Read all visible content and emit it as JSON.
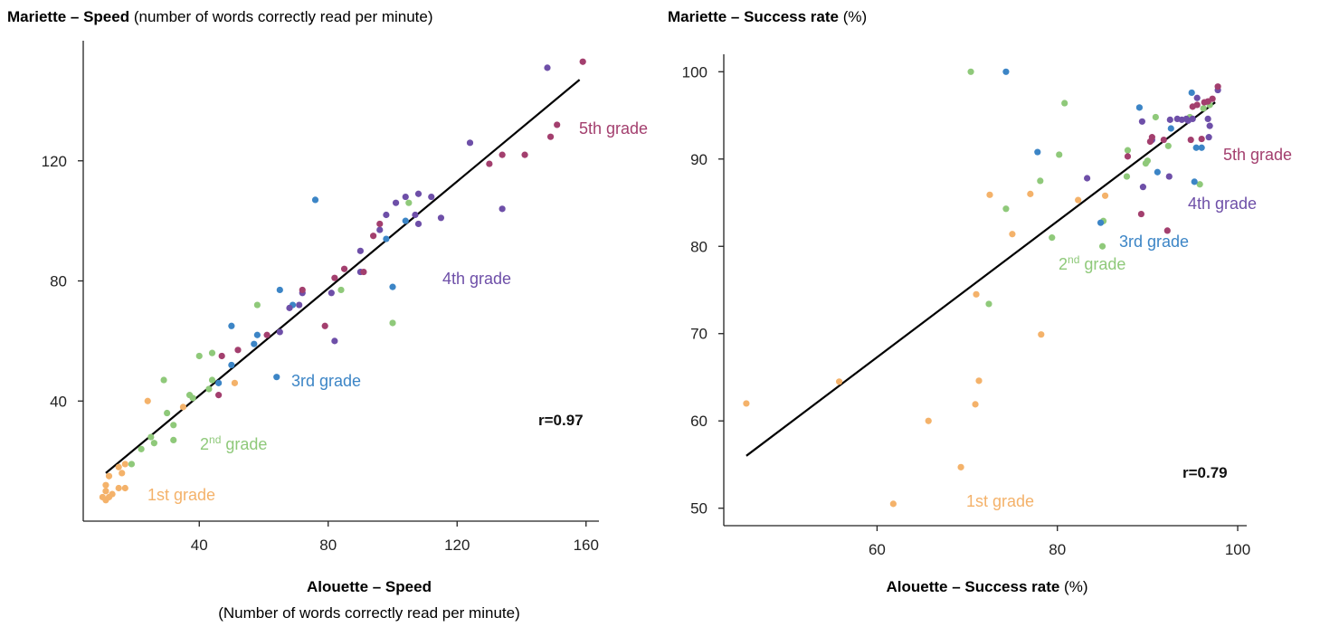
{
  "colors": {
    "1st grade": "#F4B26A",
    "2nd grade": "#8FC97A",
    "3rd grade": "#3C85C6",
    "4th grade": "#6E4FA8",
    "5th grade": "#A33F6E"
  },
  "chart_data": [
    {
      "type": "scatter",
      "title_bold": "Mariette – Speed",
      "title_rest": " (number of words correctly read per minute)",
      "xlabel_bold": "Alouette – Speed",
      "xlabel_line2": "(Number of words correctly read per minute)",
      "x_ticks": [
        "40",
        "80",
        "120",
        "160"
      ],
      "y_ticks": [
        "40",
        "80",
        "120"
      ],
      "xlim": [
        4,
        164
      ],
      "ylim": [
        0,
        160
      ],
      "r_label": "r=0.97",
      "fit_line": [
        [
          11,
          16
        ],
        [
          158,
          147
        ]
      ],
      "grade_labels": [
        "1st grade",
        "2",
        "nd",
        " grade",
        "3rd grade",
        "4th grade",
        "5th grade"
      ],
      "series": [
        {
          "grade": "1st grade",
          "points": [
            [
              11,
              7
            ],
            [
              10,
              8
            ],
            [
              12,
              8
            ],
            [
              13,
              9
            ],
            [
              11,
              10
            ],
            [
              15,
              11
            ],
            [
              11,
              12
            ],
            [
              17,
              11
            ],
            [
              16,
              16
            ],
            [
              12,
              15
            ],
            [
              15,
              18
            ],
            [
              17,
              19
            ],
            [
              24,
              40
            ],
            [
              35,
              38
            ],
            [
              51,
              46
            ]
          ]
        },
        {
          "grade": "2nd grade",
          "points": [
            [
              19,
              19
            ],
            [
              22,
              24
            ],
            [
              26,
              26
            ],
            [
              25,
              28
            ],
            [
              32,
              27
            ],
            [
              32,
              32
            ],
            [
              30,
              36
            ],
            [
              29,
              47
            ],
            [
              37,
              42
            ],
            [
              38,
              41
            ],
            [
              40,
              55
            ],
            [
              44,
              56
            ],
            [
              43,
              44
            ],
            [
              44,
              47
            ],
            [
              58,
              72
            ],
            [
              84,
              77
            ],
            [
              100,
              66
            ],
            [
              105,
              106
            ]
          ]
        },
        {
          "grade": "3rd grade",
          "points": [
            [
              46,
              46
            ],
            [
              50,
              52
            ],
            [
              50,
              65
            ],
            [
              57,
              59
            ],
            [
              58,
              62
            ],
            [
              64,
              48
            ],
            [
              65,
              77
            ],
            [
              69,
              72
            ],
            [
              76,
              107
            ],
            [
              98,
              94
            ],
            [
              100,
              78
            ],
            [
              104,
              100
            ]
          ]
        },
        {
          "grade": "4th grade",
          "points": [
            [
              65,
              63
            ],
            [
              68,
              71
            ],
            [
              71,
              72
            ],
            [
              72,
              76
            ],
            [
              81,
              76
            ],
            [
              82,
              60
            ],
            [
              90,
              83
            ],
            [
              90,
              90
            ],
            [
              96,
              97
            ],
            [
              98,
              102
            ],
            [
              101,
              106
            ],
            [
              104,
              108
            ],
            [
              107,
              102
            ],
            [
              108,
              109
            ],
            [
              112,
              108
            ],
            [
              108,
              99
            ],
            [
              115,
              101
            ],
            [
              124,
              126
            ],
            [
              134,
              104
            ],
            [
              148,
              151
            ]
          ]
        },
        {
          "grade": "5th grade",
          "points": [
            [
              46,
              42
            ],
            [
              47,
              55
            ],
            [
              52,
              57
            ],
            [
              61,
              62
            ],
            [
              72,
              77
            ],
            [
              79,
              65
            ],
            [
              82,
              81
            ],
            [
              85,
              84
            ],
            [
              91,
              83
            ],
            [
              94,
              95
            ],
            [
              96,
              99
            ],
            [
              130,
              119
            ],
            [
              134,
              122
            ],
            [
              141,
              122
            ],
            [
              149,
              128
            ],
            [
              151,
              132
            ],
            [
              159,
              153
            ]
          ]
        }
      ]
    },
    {
      "type": "scatter",
      "title_bold": "Mariette – Success rate",
      "title_rest": " (%)",
      "xlabel_bold": "Alouette – Success rate",
      "xlabel_rest": " (%)",
      "x_ticks": [
        "60",
        "80",
        "100"
      ],
      "y_ticks": [
        "50",
        "60",
        "70",
        "80",
        "90",
        "100"
      ],
      "xlim": [
        43,
        101
      ],
      "ylim": [
        48,
        102
      ],
      "r_label": "r=0.79",
      "fit_line": [
        [
          45.5,
          56
        ],
        [
          97.5,
          96.5
        ]
      ],
      "grade_labels": [
        "1st grade",
        "2",
        "nd",
        " grade",
        "3rd grade",
        "4th grade",
        "5th grade"
      ],
      "series": [
        {
          "grade": "1st grade",
          "points": [
            [
              45.5,
              62
            ],
            [
              55.8,
              64.5
            ],
            [
              61.8,
              50.5
            ],
            [
              65.7,
              60
            ],
            [
              69.3,
              54.7
            ],
            [
              70.9,
              61.9
            ],
            [
              71.3,
              64.6
            ],
            [
              71,
              74.5
            ],
            [
              72.5,
              85.9
            ],
            [
              75,
              81.4
            ],
            [
              77,
              86
            ],
            [
              78.2,
              69.9
            ],
            [
              82.3,
              85.3
            ],
            [
              85.3,
              85.8
            ]
          ]
        },
        {
          "grade": "2nd grade",
          "points": [
            [
              70.4,
              100
            ],
            [
              72.4,
              73.4
            ],
            [
              74.3,
              84.3
            ],
            [
              78.1,
              87.5
            ],
            [
              79.4,
              81
            ],
            [
              80.2,
              90.5
            ],
            [
              80.8,
              96.4
            ],
            [
              85,
              80
            ],
            [
              85.1,
              82.9
            ],
            [
              87.8,
              91
            ],
            [
              87.7,
              88
            ],
            [
              89.8,
              89.5
            ],
            [
              90,
              89.8
            ],
            [
              90.9,
              94.8
            ],
            [
              92.3,
              91.5
            ],
            [
              94.7,
              94.8
            ],
            [
              95.8,
              87.1
            ],
            [
              96.2,
              95.8
            ],
            [
              96.9,
              96.2
            ]
          ]
        },
        {
          "grade": "3rd grade",
          "points": [
            [
              74.3,
              100
            ],
            [
              77.8,
              90.8
            ],
            [
              84.8,
              82.7
            ],
            [
              89.1,
              95.9
            ],
            [
              91.1,
              88.5
            ],
            [
              92.6,
              93.5
            ],
            [
              94.9,
              97.6
            ],
            [
              95.2,
              87.4
            ],
            [
              95.4,
              91.3
            ],
            [
              96,
              91.3
            ]
          ]
        },
        {
          "grade": "4th grade",
          "points": [
            [
              83.3,
              87.8
            ],
            [
              89.4,
              94.3
            ],
            [
              89.5,
              86.8
            ],
            [
              90.5,
              92.2
            ],
            [
              92.4,
              88
            ],
            [
              92.5,
              94.5
            ],
            [
              93.3,
              94.6
            ],
            [
              93.8,
              94.5
            ],
            [
              94.3,
              94.6
            ],
            [
              94.5,
              94.4
            ],
            [
              95,
              94.6
            ],
            [
              95.5,
              97
            ],
            [
              96.7,
              94.6
            ],
            [
              96.8,
              92.5
            ],
            [
              96.9,
              93.8
            ],
            [
              97.8,
              97.9
            ]
          ]
        },
        {
          "grade": "5th grade",
          "points": [
            [
              87.8,
              90.3
            ],
            [
              89.3,
              83.7
            ],
            [
              90.3,
              92
            ],
            [
              90.5,
              92.5
            ],
            [
              91.8,
              92.2
            ],
            [
              92.2,
              81.8
            ],
            [
              94.8,
              92.2
            ],
            [
              95,
              96
            ],
            [
              95.5,
              96.2
            ],
            [
              96,
              92.3
            ],
            [
              96.3,
              96.5
            ],
            [
              96.7,
              96.6
            ],
            [
              97.2,
              96.9
            ],
            [
              97.8,
              98.3
            ]
          ]
        }
      ]
    }
  ]
}
